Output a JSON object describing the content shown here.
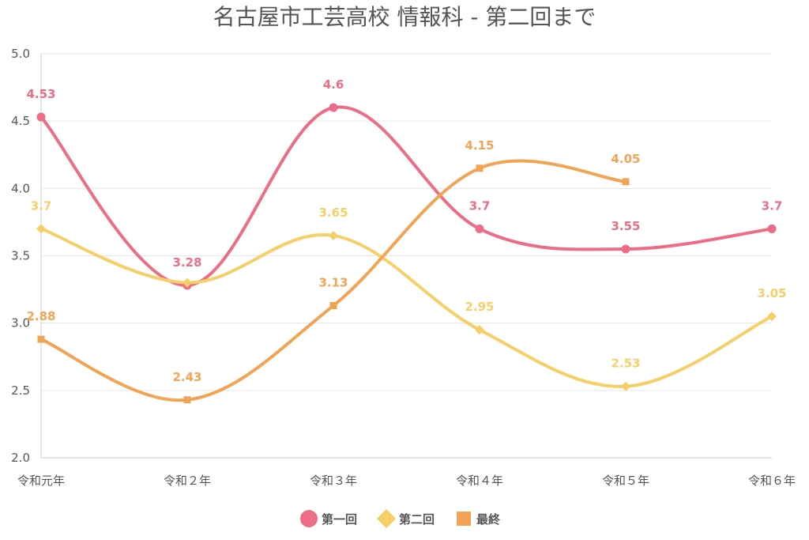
{
  "chart_data": {
    "type": "line",
    "title": "名古屋市工芸高校 情報科 - 第二回まで",
    "xlabel": "",
    "ylabel": "",
    "categories": [
      "令和元年",
      "令和２年",
      "令和３年",
      "令和４年",
      "令和５年",
      "令和６年"
    ],
    "ylim": [
      2.0,
      5.0
    ],
    "yticks": [
      "2.0",
      "2.5",
      "3.0",
      "3.5",
      "4.0",
      "4.5",
      "5.0"
    ],
    "grid": true,
    "legend_position": "bottom-center",
    "series": [
      {
        "name": "第一回",
        "color": "#ee6d86",
        "marker": "circle",
        "values": [
          4.53,
          3.28,
          4.6,
          3.7,
          3.55,
          3.7
        ],
        "labels": [
          "4.53",
          "3.28",
          "4.6",
          "3.7",
          "3.55",
          "3.7"
        ]
      },
      {
        "name": "第二回",
        "color": "#f7cf68",
        "marker": "diamond",
        "values": [
          3.7,
          3.3,
          3.65,
          2.95,
          2.53,
          3.05
        ],
        "labels": [
          "3.7",
          "",
          "3.65",
          "2.95",
          "2.53",
          "3.05"
        ]
      },
      {
        "name": "最終",
        "color": "#f2a455",
        "marker": "square",
        "values": [
          2.88,
          2.43,
          3.13,
          4.15,
          4.05,
          null
        ],
        "labels": [
          "2.88",
          "2.43",
          "3.13",
          "4.15",
          "4.05",
          ""
        ]
      }
    ]
  }
}
